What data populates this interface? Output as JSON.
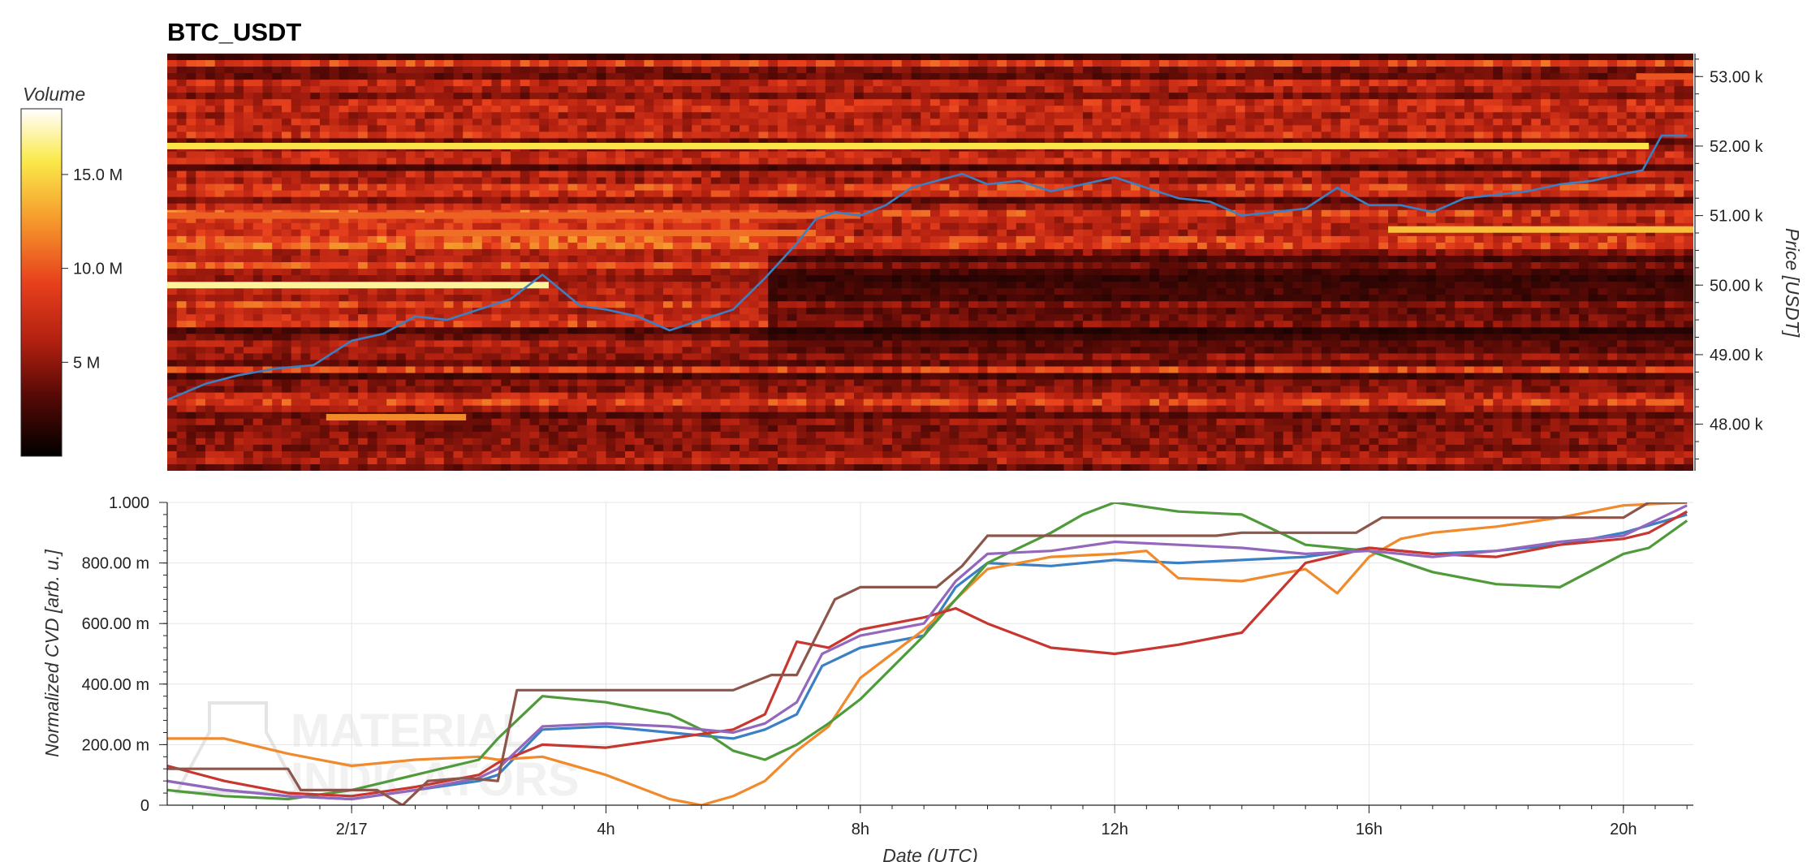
{
  "chart_data": [
    {
      "type": "heatmap",
      "title": "BTC_USDT",
      "ylabel": "Price [USDT]",
      "ylim": [
        47330,
        53330
      ],
      "yticks": [
        "53.00 k",
        "52.00 k",
        "51.00 k",
        "50.00 k",
        "49.00 k",
        "48.00 k"
      ],
      "ytick_values": [
        53000,
        52000,
        51000,
        50000,
        49000,
        48000
      ],
      "xlim_hours": [
        -2.9,
        21.1
      ],
      "colorbar": {
        "title": "Volume",
        "range": [
          0,
          18500000
        ],
        "ticks": [
          "5 M",
          "10.0 M",
          "15.0 M"
        ],
        "tick_values": [
          5000000,
          10000000,
          15000000
        ],
        "colormap": [
          "#000000",
          "#5a0a06",
          "#b22010",
          "#e8401d",
          "#f59a2c",
          "#fbe94a",
          "#ffffff"
        ]
      },
      "bright_levels": [
        {
          "price": 52000,
          "from_h": -2.9,
          "to_h": 20.4,
          "volume": 15500000
        },
        {
          "price": 51000,
          "from_h": -2.9,
          "to_h": 8.0,
          "volume": 10500000
        },
        {
          "price": 50750,
          "from_h": 1.0,
          "to_h": 7.3,
          "volume": 11000000
        },
        {
          "price": 50000,
          "from_h": -2.9,
          "to_h": 3.1,
          "volume": 17000000
        },
        {
          "price": 48100,
          "from_h": -0.4,
          "to_h": 1.8,
          "volume": 12000000
        },
        {
          "price": 50800,
          "from_h": 16.3,
          "to_h": 21.1,
          "volume": 14000000
        },
        {
          "price": 53000,
          "from_h": 20.2,
          "to_h": 21.1,
          "volume": 10000000
        }
      ],
      "price_series": {
        "name": "price",
        "color": "#3b7fc4",
        "x_hours": [
          -2.9,
          -2.3,
          -1.8,
          -1.2,
          -0.6,
          0.0,
          0.5,
          1.0,
          1.5,
          2.0,
          2.5,
          3.0,
          3.2,
          3.6,
          4.0,
          4.5,
          5.0,
          5.5,
          6.0,
          6.5,
          7.0,
          7.3,
          7.6,
          8.0,
          8.4,
          8.8,
          9.2,
          9.6,
          10.0,
          10.5,
          11.0,
          11.5,
          12.0,
          12.5,
          13.0,
          13.5,
          14.0,
          14.5,
          15.0,
          15.5,
          16.0,
          16.5,
          17.0,
          17.5,
          18.0,
          18.5,
          19.0,
          19.5,
          20.0,
          20.3,
          20.6,
          21.0
        ],
        "y_price": [
          48350,
          48580,
          48700,
          48800,
          48850,
          49200,
          49300,
          49550,
          49500,
          49650,
          49800,
          50150,
          50000,
          49700,
          49650,
          49550,
          49350,
          49500,
          49650,
          50100,
          50600,
          50950,
          51050,
          51000,
          51150,
          51400,
          51500,
          51600,
          51450,
          51500,
          51350,
          51450,
          51550,
          51400,
          51250,
          51200,
          51000,
          51050,
          51100,
          51400,
          51150,
          51150,
          51050,
          51250,
          51300,
          51350,
          51450,
          51500,
          51600,
          51650,
          52150,
          52150
        ]
      }
    },
    {
      "type": "line",
      "ylabel": "Normalized CVD [arb. u.]",
      "xlabel": "Date (UTC)",
      "ylim": [
        0,
        1.0
      ],
      "yticks": [
        "0",
        "200.00 m",
        "400.00 m",
        "600.00 m",
        "800.00 m",
        "1.000"
      ],
      "ytick_values": [
        0,
        0.2,
        0.4,
        0.6,
        0.8,
        1.0
      ],
      "xlim_hours": [
        -2.9,
        21.1
      ],
      "xticks": [
        "2/17",
        "4h",
        "8h",
        "12h",
        "16h",
        "20h"
      ],
      "xtick_values": [
        0,
        4,
        8,
        12,
        16,
        20
      ],
      "series": [
        {
          "color": "#3b7fc4",
          "x_hours": [
            -2.9,
            -2.0,
            -1.0,
            0.0,
            1.0,
            2.0,
            2.3,
            3.0,
            4.0,
            5.0,
            6.0,
            6.5,
            7.0,
            7.4,
            8.0,
            9.0,
            9.5,
            10.0,
            11.0,
            12.0,
            13.0,
            14.0,
            15.0,
            16.0,
            17.0,
            18.0,
            19.0,
            20.0,
            20.5,
            21.0
          ],
          "values": [
            0.08,
            0.05,
            0.03,
            0.02,
            0.05,
            0.08,
            0.1,
            0.25,
            0.26,
            0.24,
            0.22,
            0.25,
            0.3,
            0.46,
            0.52,
            0.56,
            0.72,
            0.8,
            0.79,
            0.81,
            0.8,
            0.81,
            0.82,
            0.85,
            0.83,
            0.84,
            0.86,
            0.9,
            0.93,
            0.96
          ]
        },
        {
          "color": "#f08a2c",
          "x_hours": [
            -2.9,
            -2.0,
            -1.0,
            0.0,
            1.0,
            2.0,
            2.3,
            3.0,
            4.0,
            5.0,
            5.5,
            6.0,
            6.5,
            7.0,
            7.5,
            8.0,
            9.0,
            10.0,
            11.0,
            12.0,
            12.5,
            13.0,
            14.0,
            15.0,
            15.5,
            16.0,
            16.5,
            17.0,
            18.0,
            19.0,
            20.0,
            21.0
          ],
          "values": [
            0.22,
            0.22,
            0.17,
            0.13,
            0.15,
            0.16,
            0.15,
            0.16,
            0.1,
            0.02,
            0.0,
            0.03,
            0.08,
            0.18,
            0.26,
            0.42,
            0.58,
            0.78,
            0.82,
            0.83,
            0.84,
            0.75,
            0.74,
            0.78,
            0.7,
            0.82,
            0.88,
            0.9,
            0.92,
            0.95,
            0.99,
            1.0
          ]
        },
        {
          "color": "#4f9a3a",
          "x_hours": [
            -2.9,
            -2.0,
            -1.0,
            0.0,
            1.0,
            2.0,
            2.3,
            3.0,
            4.0,
            5.0,
            5.5,
            6.0,
            6.5,
            7.0,
            7.5,
            8.0,
            9.0,
            10.0,
            11.0,
            11.5,
            12.0,
            13.0,
            14.0,
            15.0,
            16.0,
            17.0,
            18.0,
            19.0,
            20.0,
            20.4,
            21.0
          ],
          "values": [
            0.05,
            0.03,
            0.02,
            0.05,
            0.1,
            0.15,
            0.22,
            0.36,
            0.34,
            0.3,
            0.25,
            0.18,
            0.15,
            0.2,
            0.27,
            0.35,
            0.56,
            0.8,
            0.9,
            0.96,
            1.0,
            0.97,
            0.96,
            0.86,
            0.84,
            0.77,
            0.73,
            0.72,
            0.83,
            0.85,
            0.94
          ]
        },
        {
          "color": "#c7362f",
          "x_hours": [
            -2.9,
            -2.0,
            -1.0,
            0.0,
            1.0,
            2.0,
            2.3,
            3.0,
            4.0,
            5.0,
            6.0,
            6.5,
            7.0,
            7.5,
            8.0,
            9.0,
            9.5,
            10.0,
            11.0,
            12.0,
            13.0,
            14.0,
            15.0,
            16.0,
            17.0,
            18.0,
            19.0,
            20.0,
            20.4,
            21.0
          ],
          "values": [
            0.13,
            0.08,
            0.04,
            0.03,
            0.06,
            0.1,
            0.14,
            0.2,
            0.19,
            0.22,
            0.25,
            0.3,
            0.54,
            0.52,
            0.58,
            0.62,
            0.65,
            0.6,
            0.52,
            0.5,
            0.53,
            0.57,
            0.8,
            0.85,
            0.83,
            0.82,
            0.86,
            0.88,
            0.9,
            0.97
          ]
        },
        {
          "color": "#9467bd",
          "x_hours": [
            -2.9,
            -2.0,
            -1.0,
            0.0,
            1.0,
            2.0,
            2.3,
            3.0,
            4.0,
            5.0,
            6.0,
            6.5,
            7.0,
            7.4,
            8.0,
            9.0,
            9.5,
            10.0,
            11.0,
            12.0,
            13.0,
            14.0,
            15.0,
            16.0,
            17.0,
            18.0,
            19.0,
            20.0,
            20.5,
            21.0
          ],
          "values": [
            0.08,
            0.05,
            0.03,
            0.02,
            0.05,
            0.09,
            0.12,
            0.26,
            0.27,
            0.26,
            0.24,
            0.27,
            0.34,
            0.5,
            0.56,
            0.6,
            0.74,
            0.83,
            0.84,
            0.87,
            0.86,
            0.85,
            0.83,
            0.84,
            0.82,
            0.84,
            0.87,
            0.89,
            0.94,
            0.99
          ]
        },
        {
          "color": "#8c564b",
          "x_hours": [
            -2.9,
            -1.0,
            -0.8,
            0.4,
            0.8,
            1.2,
            1.8,
            2.3,
            2.6,
            6.0,
            6.6,
            7.0,
            7.6,
            8.0,
            9.2,
            9.6,
            10.0,
            12.0,
            13.6,
            14.0,
            15.8,
            16.2,
            20.0,
            20.4,
            21.0
          ],
          "values": [
            0.12,
            0.12,
            0.05,
            0.05,
            0.0,
            0.08,
            0.09,
            0.08,
            0.38,
            0.38,
            0.43,
            0.43,
            0.68,
            0.72,
            0.72,
            0.79,
            0.89,
            0.89,
            0.89,
            0.9,
            0.9,
            0.95,
            0.95,
            1.0,
            1.0
          ]
        }
      ],
      "watermark": [
        "MATERIAL",
        "INDICATORS"
      ]
    }
  ]
}
